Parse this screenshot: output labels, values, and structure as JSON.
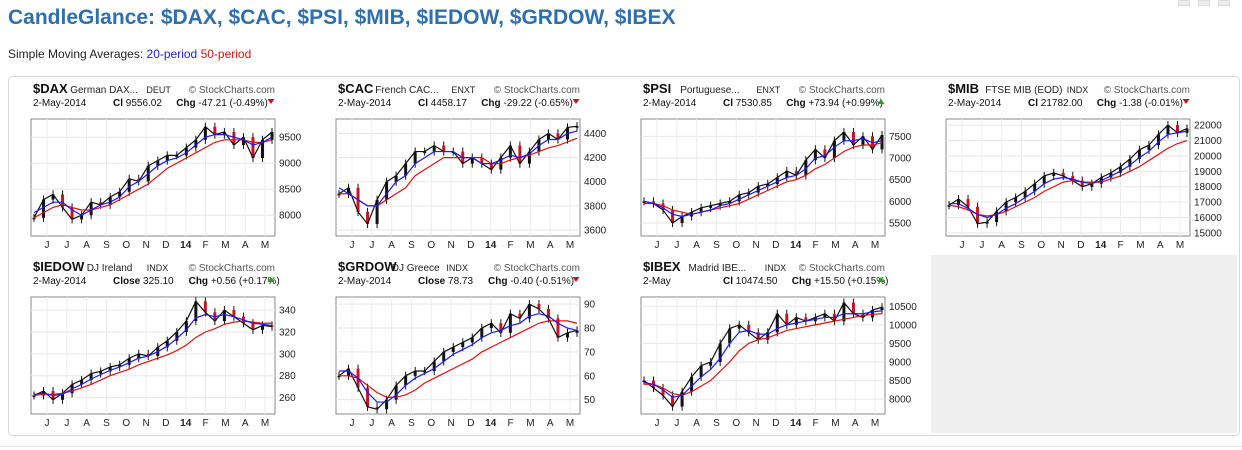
{
  "page": {
    "title": "CandleGlance: $DAX, $CAC, $PSI, $MIB, $IEDOW, $GRDOW, $IBEX",
    "sma_prefix": "Simple Moving Averages:",
    "sma_20": "20-period",
    "sma_50": "50-period",
    "brand": "StockCharts.com",
    "colors": {
      "title": "#2f6fad",
      "sma20": "#1a1aff",
      "sma50": "#e01010",
      "up": "#2a9d2a",
      "down": "#cc1122"
    }
  },
  "chart_data": [
    {
      "type": "line",
      "symbol": "$DAX",
      "name": "German DAX...",
      "exchange": "DEUT",
      "date": "2-May-2014",
      "close_label": "Cl",
      "close": "9556.02",
      "chg": "-47.21 (-0.49%)",
      "direction": "down",
      "x_labels": [
        "J",
        "J",
        "A",
        "S",
        "O",
        "N",
        "D",
        "14",
        "F",
        "M",
        "A",
        "M"
      ],
      "y_ticks": [
        "8000",
        "8500",
        "9000",
        "9500"
      ],
      "ylim": [
        7600,
        9850
      ],
      "series": [
        {
          "name": "price",
          "values": [
            7950,
            8300,
            8400,
            8150,
            7920,
            8000,
            8250,
            8200,
            8350,
            8450,
            8700,
            8650,
            8950,
            9050,
            9150,
            9150,
            9300,
            9450,
            9700,
            9550,
            9600,
            9350,
            9500,
            9100,
            9450,
            9600
          ]
        },
        {
          "name": "sma20",
          "values": [
            8050,
            8150,
            8250,
            8250,
            8100,
            8000,
            8100,
            8200,
            8250,
            8350,
            8550,
            8650,
            8800,
            8950,
            9050,
            9100,
            9200,
            9350,
            9500,
            9550,
            9550,
            9500,
            9450,
            9350,
            9400,
            9500
          ]
        },
        {
          "name": "sma50",
          "values": [
            7950,
            8050,
            8150,
            8200,
            8150,
            8100,
            8100,
            8150,
            8200,
            8300,
            8400,
            8500,
            8600,
            8750,
            8900,
            9000,
            9100,
            9200,
            9300,
            9400,
            9450,
            9450,
            9450,
            9400,
            9400,
            9450
          ]
        }
      ]
    },
    {
      "type": "line",
      "symbol": "$CAC",
      "name": "French CAC...",
      "exchange": "ENXT",
      "date": "2-May-2014",
      "close_label": "Cl",
      "close": "4458.17",
      "chg": "-29.22 (-0.65%)",
      "direction": "down",
      "x_labels": [
        "J",
        "J",
        "A",
        "S",
        "O",
        "N",
        "D",
        "14",
        "F",
        "M",
        "A",
        "M"
      ],
      "y_ticks": [
        "3600",
        "3800",
        "4000",
        "4200",
        "4400"
      ],
      "ylim": [
        3550,
        4520
      ],
      "series": [
        {
          "name": "price",
          "values": [
            3900,
            3950,
            3750,
            3650,
            3850,
            4000,
            4050,
            4150,
            4250,
            4250,
            4300,
            4250,
            4250,
            4150,
            4200,
            4150,
            4100,
            4200,
            4300,
            4150,
            4250,
            4350,
            4400,
            4350,
            4450,
            4460
          ]
        },
        {
          "name": "sma20",
          "values": [
            3950,
            3900,
            3850,
            3800,
            3800,
            3900,
            4000,
            4050,
            4150,
            4200,
            4250,
            4250,
            4250,
            4200,
            4200,
            4150,
            4150,
            4180,
            4220,
            4200,
            4230,
            4300,
            4350,
            4350,
            4400,
            4420
          ]
        },
        {
          "name": "sma50",
          "values": [
            3900,
            3900,
            3850,
            3800,
            3800,
            3850,
            3900,
            3950,
            4050,
            4100,
            4150,
            4200,
            4200,
            4200,
            4200,
            4200,
            4150,
            4150,
            4180,
            4200,
            4220,
            4250,
            4280,
            4300,
            4330,
            4360
          ]
        }
      ]
    },
    {
      "type": "line",
      "symbol": "$PSI",
      "name": "Portuguese...",
      "exchange": "ENXT",
      "date": "2-May-2014",
      "close_label": "Cl",
      "close": "7530.85",
      "chg": "+73.94 (+0.99%)",
      "direction": "up",
      "x_labels": [
        "J",
        "J",
        "A",
        "S",
        "O",
        "N",
        "D",
        "14",
        "F",
        "M",
        "A",
        "M"
      ],
      "y_ticks": [
        "5500",
        "6000",
        "6500",
        "7000",
        "7500"
      ],
      "ylim": [
        5200,
        7900
      ],
      "series": [
        {
          "name": "price",
          "values": [
            6000,
            5950,
            5800,
            5500,
            5650,
            5750,
            5850,
            5900,
            5950,
            6000,
            6150,
            6200,
            6350,
            6400,
            6550,
            6700,
            6600,
            6950,
            7200,
            7000,
            7400,
            7600,
            7300,
            7500,
            7200,
            7530
          ]
        },
        {
          "name": "sma20",
          "values": [
            6000,
            5950,
            5850,
            5700,
            5650,
            5700,
            5750,
            5800,
            5900,
            5950,
            6050,
            6150,
            6250,
            6350,
            6450,
            6550,
            6600,
            6750,
            7000,
            7050,
            7250,
            7400,
            7400,
            7450,
            7350,
            7400
          ]
        },
        {
          "name": "sma50",
          "values": [
            5950,
            5950,
            5900,
            5800,
            5750,
            5700,
            5750,
            5800,
            5850,
            5900,
            5950,
            6050,
            6150,
            6250,
            6350,
            6450,
            6500,
            6600,
            6750,
            6850,
            7000,
            7150,
            7250,
            7300,
            7300,
            7350
          ]
        }
      ]
    },
    {
      "type": "line",
      "symbol": "$MIB",
      "name": "FTSE MIB (EOD)",
      "exchange": "INDX",
      "date": "2-May-2014",
      "close_label": "Cl",
      "close": "21782.00",
      "chg": "-1.38 (-0.01%)",
      "direction": "down",
      "x_labels": [
        "J",
        "J",
        "A",
        "S",
        "O",
        "N",
        "D",
        "14",
        "F",
        "M",
        "A",
        "M"
      ],
      "y_ticks": [
        "15000",
        "16000",
        "17000",
        "18000",
        "19000",
        "20000",
        "21000",
        "22000"
      ],
      "ylim": [
        14800,
        22400
      ],
      "series": [
        {
          "name": "price",
          "values": [
            16800,
            17200,
            16700,
            15600,
            15700,
            16400,
            17000,
            17300,
            17700,
            18200,
            18700,
            18900,
            18700,
            18400,
            18000,
            18200,
            18600,
            18900,
            19300,
            19800,
            20400,
            20700,
            21400,
            22000,
            21500,
            21780
          ]
        },
        {
          "name": "sma20",
          "values": [
            16900,
            16900,
            16600,
            16200,
            16000,
            16200,
            16600,
            16900,
            17300,
            17700,
            18200,
            18500,
            18600,
            18500,
            18300,
            18200,
            18400,
            18700,
            19000,
            19400,
            19900,
            20300,
            20900,
            21400,
            21500,
            21600
          ]
        },
        {
          "name": "sma50",
          "values": [
            16800,
            16700,
            16500,
            16200,
            16100,
            16200,
            16400,
            16700,
            17000,
            17300,
            17700,
            18000,
            18300,
            18400,
            18300,
            18300,
            18300,
            18500,
            18700,
            19000,
            19300,
            19700,
            20100,
            20500,
            20800,
            21000
          ]
        }
      ]
    },
    {
      "type": "line",
      "symbol": "$IEDOW",
      "name": "DJ Ireland",
      "exchange": "INDX",
      "date": "2-May-2014",
      "close_label": "Close",
      "close": "325.10",
      "chg": "+0.56 (+0.17%)",
      "direction": "up",
      "x_labels": [
        "J",
        "J",
        "A",
        "S",
        "O",
        "N",
        "D",
        "14",
        "F",
        "M",
        "A",
        "M"
      ],
      "y_ticks": [
        "260",
        "280",
        "300",
        "320",
        "340"
      ],
      "ylim": [
        245,
        352
      ],
      "series": [
        {
          "name": "price",
          "values": [
            262,
            266,
            258,
            264,
            272,
            276,
            282,
            284,
            288,
            290,
            296,
            300,
            298,
            306,
            312,
            320,
            330,
            348,
            338,
            330,
            340,
            334,
            328,
            322,
            326,
            325
          ]
        },
        {
          "name": "sma20",
          "values": [
            263,
            264,
            262,
            263,
            268,
            272,
            277,
            281,
            285,
            288,
            292,
            296,
            298,
            302,
            307,
            314,
            322,
            333,
            336,
            334,
            336,
            334,
            331,
            328,
            327,
            326
          ]
        },
        {
          "name": "sma50",
          "values": [
            262,
            263,
            263,
            264,
            266,
            269,
            272,
            276,
            280,
            283,
            286,
            290,
            293,
            296,
            299,
            303,
            308,
            315,
            320,
            323,
            327,
            329,
            330,
            329,
            328,
            328
          ]
        }
      ]
    },
    {
      "type": "line",
      "symbol": "$GRDOW",
      "name": "DJ Greece",
      "exchange": "INDX",
      "date": "2-May-2014",
      "close_label": "Close",
      "close": "78.73",
      "chg": "-0.40 (-0.51%)",
      "direction": "down",
      "x_labels": [
        "J",
        "J",
        "A",
        "S",
        "O",
        "N",
        "D",
        "14",
        "F",
        "M",
        "A",
        "M"
      ],
      "y_ticks": [
        "50",
        "60",
        "70",
        "80",
        "90"
      ],
      "ylim": [
        44,
        93
      ],
      "series": [
        {
          "name": "price",
          "values": [
            60,
            63,
            55,
            47,
            46,
            50,
            56,
            60,
            62,
            62,
            66,
            70,
            72,
            74,
            76,
            80,
            82,
            78,
            86,
            84,
            90,
            88,
            84,
            76,
            78,
            79
          ]
        },
        {
          "name": "sma20",
          "values": [
            62,
            62,
            59,
            53,
            49,
            49,
            52,
            56,
            59,
            61,
            63,
            66,
            69,
            71,
            73,
            76,
            78,
            79,
            81,
            82,
            85,
            86,
            85,
            82,
            80,
            79
          ]
        },
        {
          "name": "sma50",
          "values": [
            60,
            60,
            59,
            56,
            53,
            51,
            51,
            52,
            54,
            57,
            59,
            61,
            63,
            65,
            67,
            70,
            72,
            74,
            76,
            78,
            80,
            82,
            83,
            83,
            83,
            82
          ]
        }
      ]
    },
    {
      "type": "line",
      "symbol": "$IBEX",
      "name": "Madrid IBE...",
      "exchange": "INDX",
      "date": "2-May",
      "close_label": "Cl",
      "close": "10474.50",
      "chg": "+15.50 (+0.15%)",
      "direction": "up",
      "x_labels": [
        "J",
        "J",
        "A",
        "S",
        "O",
        "N",
        "D",
        "14",
        "F",
        "M",
        "A",
        "M"
      ],
      "y_ticks": [
        "8000",
        "8500",
        "9000",
        "9500",
        "10000",
        "10500"
      ],
      "ylim": [
        7600,
        10750
      ],
      "series": [
        {
          "name": "price",
          "values": [
            8500,
            8300,
            8100,
            7800,
            8200,
            8600,
            8900,
            9000,
            9500,
            9900,
            10000,
            9800,
            9600,
            9800,
            10300,
            10000,
            10200,
            10100,
            10200,
            10300,
            10100,
            10600,
            10300,
            10200,
            10400,
            10474
          ]
        },
        {
          "name": "sma20",
          "values": [
            8450,
            8400,
            8250,
            8050,
            8100,
            8350,
            8600,
            8800,
            9100,
            9500,
            9800,
            9850,
            9750,
            9750,
            9900,
            10000,
            10050,
            10100,
            10150,
            10200,
            10200,
            10300,
            10300,
            10300,
            10350,
            10380
          ]
        },
        {
          "name": "sma50",
          "values": [
            8400,
            8400,
            8300,
            8150,
            8100,
            8200,
            8350,
            8500,
            8750,
            9000,
            9300,
            9500,
            9600,
            9650,
            9750,
            9850,
            9900,
            9950,
            10000,
            10050,
            10100,
            10150,
            10200,
            10250,
            10280,
            10300
          ]
        }
      ]
    }
  ]
}
